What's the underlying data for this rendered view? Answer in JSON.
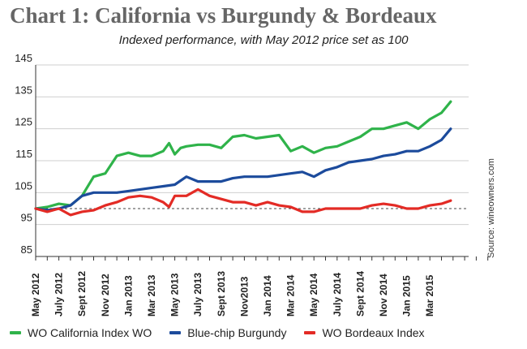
{
  "chart_data": {
    "type": "line",
    "title": "Chart 1: California vs Burgundy & Bordeaux",
    "subtitle": "Indexed performance, with May 2012 price set as 100",
    "source": "Source: wineowners.com",
    "xlabel": "",
    "ylabel": "",
    "ylim": [
      85,
      145
    ],
    "yticks": [
      85,
      95,
      105,
      115,
      125,
      135,
      145
    ],
    "xticks": [
      "May 2012",
      "July 2012",
      "Sept 2012",
      "Nov 2012",
      "Jan 2013",
      "Mar 2013",
      "May 2013",
      "July 2013",
      "Sept 2013",
      "Nov2013",
      "Jan 2014",
      "Mar 2014",
      "May 2014",
      "July 2014",
      "Sept 2014",
      "Nov 2014",
      "Jan 2015",
      "Mar 2015"
    ],
    "x_unit": "months since May 2012",
    "xlim": [
      0,
      39.5
    ],
    "grid": "horizontal",
    "reference_line": 100,
    "legend_position": "bottom",
    "series": [
      {
        "name": "WO California Index WO",
        "color": "#2fb34a",
        "points": [
          [
            0,
            100
          ],
          [
            1,
            100.5
          ],
          [
            2,
            101.5
          ],
          [
            3,
            101
          ],
          [
            4,
            104
          ],
          [
            5,
            110
          ],
          [
            6,
            111
          ],
          [
            7,
            116.5
          ],
          [
            8,
            117.5
          ],
          [
            9,
            116.5
          ],
          [
            10,
            116.5
          ],
          [
            11,
            118
          ],
          [
            11.5,
            120.5
          ],
          [
            12,
            117
          ],
          [
            12.5,
            119
          ],
          [
            13,
            119.5
          ],
          [
            14,
            120
          ],
          [
            15,
            120
          ],
          [
            16,
            119
          ],
          [
            17,
            122.5
          ],
          [
            18,
            123
          ],
          [
            19,
            122
          ],
          [
            20,
            122.5
          ],
          [
            21,
            123
          ],
          [
            22,
            118
          ],
          [
            23,
            119.5
          ],
          [
            24,
            117.5
          ],
          [
            25,
            119
          ],
          [
            26,
            119.5
          ],
          [
            27,
            121
          ],
          [
            28,
            122.5
          ],
          [
            29,
            125
          ],
          [
            30,
            125
          ],
          [
            31,
            126
          ],
          [
            32,
            127
          ],
          [
            33,
            125
          ],
          [
            34,
            128
          ],
          [
            35,
            130
          ],
          [
            35.8,
            133.5
          ]
        ]
      },
      {
        "name": "Blue-chip Burgundy",
        "color": "#1c4b9c",
        "points": [
          [
            0,
            100
          ],
          [
            1,
            99.5
          ],
          [
            2,
            100
          ],
          [
            3,
            101
          ],
          [
            4,
            104
          ],
          [
            5,
            105
          ],
          [
            6,
            105
          ],
          [
            7,
            105
          ],
          [
            8,
            105.5
          ],
          [
            9,
            106
          ],
          [
            10,
            106.5
          ],
          [
            11,
            107
          ],
          [
            12,
            107.5
          ],
          [
            13,
            110
          ],
          [
            14,
            108.5
          ],
          [
            15,
            108.5
          ],
          [
            16,
            108.5
          ],
          [
            17,
            109.5
          ],
          [
            18,
            110
          ],
          [
            19,
            110
          ],
          [
            20,
            110
          ],
          [
            21,
            110.5
          ],
          [
            22,
            111
          ],
          [
            23,
            111.5
          ],
          [
            24,
            110
          ],
          [
            25,
            112
          ],
          [
            26,
            113
          ],
          [
            27,
            114.5
          ],
          [
            28,
            115
          ],
          [
            29,
            115.5
          ],
          [
            30,
            116.5
          ],
          [
            31,
            117
          ],
          [
            32,
            118
          ],
          [
            33,
            118
          ],
          [
            34,
            119.5
          ],
          [
            35,
            121.5
          ],
          [
            35.8,
            125
          ]
        ]
      },
      {
        "name": "WO Bordeaux Index",
        "color": "#e32b25",
        "points": [
          [
            0,
            100
          ],
          [
            1,
            99
          ],
          [
            2,
            100
          ],
          [
            3,
            98
          ],
          [
            4,
            99
          ],
          [
            5,
            99.5
          ],
          [
            6,
            101
          ],
          [
            7,
            102
          ],
          [
            8,
            103.5
          ],
          [
            9,
            104
          ],
          [
            10,
            103.5
          ],
          [
            11,
            102
          ],
          [
            11.5,
            100.5
          ],
          [
            12,
            104
          ],
          [
            13,
            104
          ],
          [
            14,
            106
          ],
          [
            15,
            104
          ],
          [
            16,
            103
          ],
          [
            17,
            102
          ],
          [
            18,
            102
          ],
          [
            19,
            101
          ],
          [
            20,
            102
          ],
          [
            21,
            101
          ],
          [
            22,
            100.5
          ],
          [
            23,
            99
          ],
          [
            24,
            99
          ],
          [
            25,
            100
          ],
          [
            26,
            100
          ],
          [
            27,
            100
          ],
          [
            28,
            100
          ],
          [
            29,
            101
          ],
          [
            30,
            101.5
          ],
          [
            31,
            101
          ],
          [
            32,
            100
          ],
          [
            33,
            100
          ],
          [
            34,
            101
          ],
          [
            35,
            101.5
          ],
          [
            35.8,
            102.5
          ]
        ]
      }
    ]
  }
}
